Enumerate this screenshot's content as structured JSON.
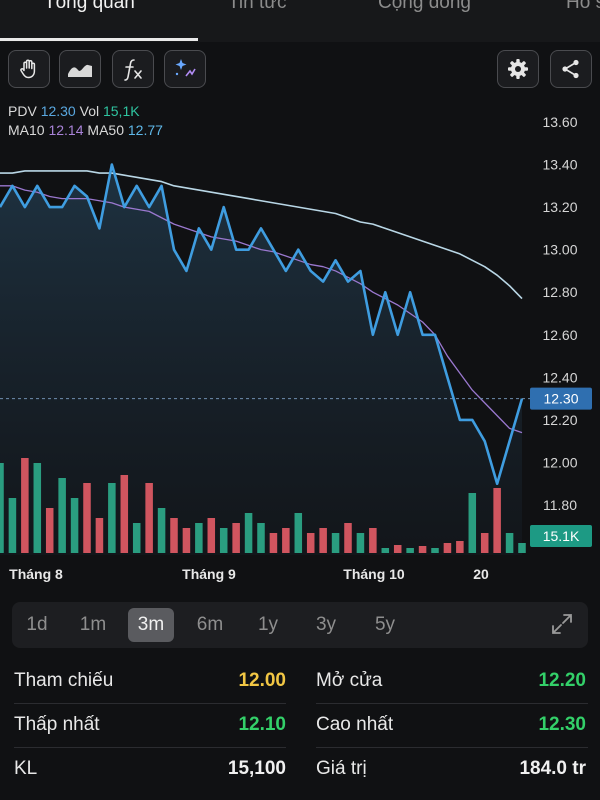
{
  "tabs": [
    "Tổng quan",
    "Tin tức",
    "Cộng đồng",
    "Hồ s"
  ],
  "legend": {
    "pdv_label": "PDV",
    "pdv_value": "12.30",
    "vol_label": "Vol",
    "vol_value": "15,1K",
    "ma10_label": "MA10",
    "ma10_value": "12.14",
    "ma50_label": "MA50",
    "ma50_value": "12.77"
  },
  "toolbar": {
    "icons": [
      "hand-icon",
      "area-chart-icon",
      "function-icon",
      "magic-draw-icon",
      "gear-icon",
      "share-icon"
    ],
    "fx_label": "fx"
  },
  "chart_data": {
    "type": "line",
    "y_ticks": [
      "13.60",
      "13.40",
      "13.20",
      "13.00",
      "12.80",
      "12.60",
      "12.40",
      "12.20",
      "12.00",
      "11.80"
    ],
    "x_ticks": [
      "Tháng 8",
      "Tháng 9",
      "Tháng 10",
      "20"
    ],
    "current_price_tag": "12.30",
    "volume_tag": "15.1K",
    "ylim": [
      11.7,
      13.7
    ],
    "series": [
      {
        "name": "PDV",
        "values": [
          13.2,
          13.3,
          13.2,
          13.3,
          13.2,
          13.2,
          13.3,
          13.25,
          13.1,
          13.4,
          13.2,
          13.3,
          13.2,
          13.3,
          13.0,
          12.9,
          13.1,
          13.0,
          13.2,
          13.0,
          13.0,
          13.1,
          13.0,
          12.9,
          13.0,
          12.9,
          12.85,
          12.95,
          12.85,
          12.9,
          12.6,
          12.8,
          12.6,
          12.8,
          12.6,
          12.6,
          12.4,
          12.2,
          12.2,
          12.1,
          11.9,
          12.1,
          12.3
        ],
        "color": "#3f9de0"
      },
      {
        "name": "MA10",
        "values": [
          13.3,
          13.3,
          13.28,
          13.27,
          13.25,
          13.24,
          13.24,
          13.24,
          13.23,
          13.22,
          13.2,
          13.19,
          13.18,
          13.15,
          13.12,
          13.1,
          13.08,
          13.06,
          13.05,
          13.04,
          13.02,
          13.0,
          12.99,
          12.97,
          12.95,
          12.93,
          12.92,
          12.9,
          12.87,
          12.84,
          12.8,
          12.77,
          12.74,
          12.7,
          12.66,
          12.6,
          12.5,
          12.42,
          12.34,
          12.28,
          12.22,
          12.16,
          12.14
        ],
        "color": "#9a78cf"
      },
      {
        "name": "MA50",
        "values": [
          13.36,
          13.36,
          13.37,
          13.37,
          13.37,
          13.37,
          13.37,
          13.37,
          13.36,
          13.36,
          13.35,
          13.34,
          13.33,
          13.32,
          13.3,
          13.29,
          13.28,
          13.27,
          13.26,
          13.25,
          13.24,
          13.23,
          13.22,
          13.21,
          13.2,
          13.19,
          13.18,
          13.17,
          13.15,
          13.13,
          13.12,
          13.1,
          13.08,
          13.06,
          13.04,
          13.02,
          13.0,
          12.98,
          12.95,
          12.92,
          12.88,
          12.83,
          12.77
        ],
        "color": "#b9d7e6"
      }
    ],
    "volume": [
      0.9,
      0.55,
      0.95,
      0.9,
      0.45,
      0.75,
      0.55,
      0.7,
      0.35,
      0.7,
      0.78,
      0.3,
      0.7,
      0.45,
      0.35,
      0.25,
      0.3,
      0.35,
      0.25,
      0.3,
      0.4,
      0.3,
      0.2,
      0.25,
      0.4,
      0.2,
      0.25,
      0.2,
      0.3,
      0.2,
      0.25,
      0.05,
      0.08,
      0.05,
      0.07,
      0.05,
      0.1,
      0.12,
      0.6,
      0.2,
      0.65,
      0.2,
      0.1
    ]
  },
  "range": {
    "buttons": [
      "1d",
      "1m",
      "3m",
      "6m",
      "1y",
      "3y",
      "5y"
    ],
    "active": "3m"
  },
  "stats": {
    "tham_chieu_label": "Tham chiếu",
    "tham_chieu_value": "12.00",
    "mo_cua_label": "Mở cửa",
    "mo_cua_value": "12.20",
    "thap_nhat_label": "Thấp nhất",
    "thap_nhat_value": "12.10",
    "cao_nhat_label": "Cao nhất",
    "cao_nhat_value": "12.30",
    "kl_label": "KL",
    "kl_value": "15,100",
    "gia_tri_label": "Giá trị",
    "gia_tri_value": "184.0 tr"
  },
  "colors": {
    "up": "#2a9d80",
    "down": "#d0555f",
    "price_line": "#3f9de0",
    "bg": "#101113"
  }
}
